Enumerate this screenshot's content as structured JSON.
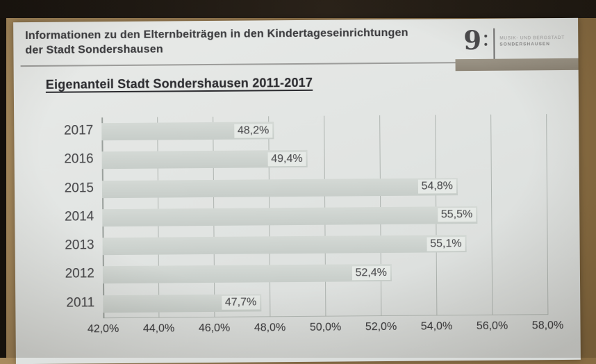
{
  "header": {
    "title_line1": "Informationen zu den Elternbeiträgen in den Kindertageseinrichtungen",
    "title_line2": "der Stadt Sondershausen",
    "logo": {
      "clef_glyph": "9",
      "text_line1": "MUSIK- UND BERGSTADT",
      "text_line2": "SONDERSHAUSEN"
    }
  },
  "chart_data": {
    "type": "bar",
    "orientation": "horizontal",
    "title": "Eigenanteil Stadt Sondershausen 2011-2017",
    "categories": [
      "2017",
      "2016",
      "2015",
      "2014",
      "2013",
      "2012",
      "2011"
    ],
    "values": [
      48.2,
      49.4,
      54.8,
      55.5,
      55.1,
      52.4,
      47.7
    ],
    "value_labels": [
      "48,2%",
      "49,4%",
      "54,8%",
      "55,5%",
      "55,1%",
      "52,4%",
      "47,7%"
    ],
    "x_ticks": [
      "42,0%",
      "44,0%",
      "46,0%",
      "48,0%",
      "50,0%",
      "52,0%",
      "54,0%",
      "56,0%",
      "58,0%"
    ],
    "x_tick_values": [
      42,
      44,
      46,
      48,
      50,
      52,
      54,
      56,
      58
    ],
    "xlim": [
      42,
      58
    ],
    "grid": true,
    "legend": false,
    "value_label_position": "inside-end",
    "bar_color": "#cdd3cf",
    "background": "#e2e5e2"
  },
  "colors": {
    "wall": "#97794f",
    "top_strip": "#221c15",
    "slide": "#e2e5e2",
    "accent_bar": "#968f80",
    "grid": "#aeb4b0",
    "text_dark": "#3b3b3e"
  }
}
